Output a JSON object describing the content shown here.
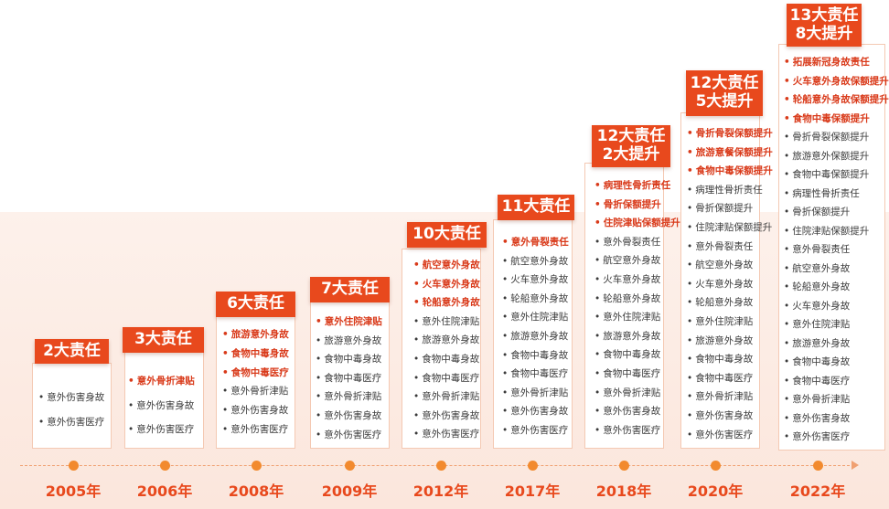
{
  "timeline": [
    {
      "year": "2005年",
      "title_lines": [
        "2大责任"
      ],
      "items": [
        {
          "text": "意外伤害身故",
          "highlight": false
        },
        {
          "text": "意外伤害医疗",
          "highlight": false
        }
      ]
    },
    {
      "year": "2006年",
      "title_lines": [
        "3大责任"
      ],
      "items": [
        {
          "text": "意外骨折津贴",
          "highlight": true
        },
        {
          "text": "意外伤害身故",
          "highlight": false
        },
        {
          "text": "意外伤害医疗",
          "highlight": false
        }
      ]
    },
    {
      "year": "2008年",
      "title_lines": [
        "6大责任"
      ],
      "items": [
        {
          "text": "旅游意外身故",
          "highlight": true
        },
        {
          "text": "食物中毒身故",
          "highlight": true
        },
        {
          "text": "食物中毒医疗",
          "highlight": true
        },
        {
          "text": "意外骨折津贴",
          "highlight": false
        },
        {
          "text": "意外伤害身故",
          "highlight": false
        },
        {
          "text": "意外伤害医疗",
          "highlight": false
        }
      ]
    },
    {
      "year": "2009年",
      "title_lines": [
        "7大责任"
      ],
      "items": [
        {
          "text": "意外住院津贴",
          "highlight": true
        },
        {
          "text": "旅游意外身故",
          "highlight": false
        },
        {
          "text": "食物中毒身故",
          "highlight": false
        },
        {
          "text": "食物中毒医疗",
          "highlight": false
        },
        {
          "text": "意外骨折津贴",
          "highlight": false
        },
        {
          "text": "意外伤害身故",
          "highlight": false
        },
        {
          "text": "意外伤害医疗",
          "highlight": false
        }
      ]
    },
    {
      "year": "2012年",
      "title_lines": [
        "10大责任"
      ],
      "items": [
        {
          "text": "航空意外身故",
          "highlight": true
        },
        {
          "text": "火车意外身故",
          "highlight": true
        },
        {
          "text": "轮船意外身故",
          "highlight": true
        },
        {
          "text": "意外住院津贴",
          "highlight": false
        },
        {
          "text": "旅游意外身故",
          "highlight": false
        },
        {
          "text": "食物中毒身故",
          "highlight": false
        },
        {
          "text": "食物中毒医疗",
          "highlight": false
        },
        {
          "text": "意外骨折津贴",
          "highlight": false
        },
        {
          "text": "意外伤害身故",
          "highlight": false
        },
        {
          "text": "意外伤害医疗",
          "highlight": false
        }
      ]
    },
    {
      "year": "2017年",
      "title_lines": [
        "11大责任"
      ],
      "items": [
        {
          "text": "意外骨裂责任",
          "highlight": true
        },
        {
          "text": "航空意外身故",
          "highlight": false
        },
        {
          "text": "火车意外身故",
          "highlight": false
        },
        {
          "text": "轮船意外身故",
          "highlight": false
        },
        {
          "text": "意外住院津贴",
          "highlight": false
        },
        {
          "text": "旅游意外身故",
          "highlight": false
        },
        {
          "text": "食物中毒身故",
          "highlight": false
        },
        {
          "text": "食物中毒医疗",
          "highlight": false
        },
        {
          "text": "意外骨折津贴",
          "highlight": false
        },
        {
          "text": "意外伤害身故",
          "highlight": false
        },
        {
          "text": "意外伤害医疗",
          "highlight": false
        }
      ]
    },
    {
      "year": "2018年",
      "title_lines": [
        "12大责任",
        "2大提升"
      ],
      "items": [
        {
          "text": "病理性骨折责任",
          "highlight": true
        },
        {
          "text": "骨折保额提升",
          "highlight": true
        },
        {
          "text": "住院津贴保额提升",
          "highlight": true
        },
        {
          "text": "意外骨裂责任",
          "highlight": false
        },
        {
          "text": "航空意外身故",
          "highlight": false
        },
        {
          "text": "火车意外身故",
          "highlight": false
        },
        {
          "text": "轮船意外身故",
          "highlight": false
        },
        {
          "text": "意外住院津贴",
          "highlight": false
        },
        {
          "text": "旅游意外身故",
          "highlight": false
        },
        {
          "text": "食物中毒身故",
          "highlight": false
        },
        {
          "text": "食物中毒医疗",
          "highlight": false
        },
        {
          "text": "意外骨折津贴",
          "highlight": false
        },
        {
          "text": "意外伤害身故",
          "highlight": false
        },
        {
          "text": "意外伤害医疗",
          "highlight": false
        }
      ]
    },
    {
      "year": "2020年",
      "title_lines": [
        "12大责任",
        "5大提升"
      ],
      "items": [
        {
          "text": "骨折骨裂保额提升",
          "highlight": true
        },
        {
          "text": "旅游意餐保额提升",
          "highlight": true
        },
        {
          "text": "食物中毒保额提升",
          "highlight": true
        },
        {
          "text": "病理性骨折责任",
          "highlight": false
        },
        {
          "text": "骨折保额提升",
          "highlight": false
        },
        {
          "text": "住院津贴保额提升",
          "highlight": false
        },
        {
          "text": "意外骨裂责任",
          "highlight": false
        },
        {
          "text": "航空意外身故",
          "highlight": false
        },
        {
          "text": "火车意外身故",
          "highlight": false
        },
        {
          "text": "轮船意外身故",
          "highlight": false
        },
        {
          "text": "意外住院津贴",
          "highlight": false
        },
        {
          "text": "旅游意外身故",
          "highlight": false
        },
        {
          "text": "食物中毒身故",
          "highlight": false
        },
        {
          "text": "食物中毒医疗",
          "highlight": false
        },
        {
          "text": "意外骨折津贴",
          "highlight": false
        },
        {
          "text": "意外伤害身故",
          "highlight": false
        },
        {
          "text": "意外伤害医疗",
          "highlight": false
        }
      ]
    },
    {
      "year": "2022年",
      "title_lines": [
        "13大责任",
        "8大提升"
      ],
      "items": [
        {
          "text": "拓展新冠身故责任",
          "highlight": true
        },
        {
          "text": "火车意外身故保额提升",
          "highlight": true
        },
        {
          "text": "轮船意外身故保额提升",
          "highlight": true
        },
        {
          "text": "食物中毒保额提升",
          "highlight": true
        },
        {
          "text": "骨折骨裂保额提升",
          "highlight": false
        },
        {
          "text": "旅游意外保额提升",
          "highlight": false
        },
        {
          "text": "食物中毒保额提升",
          "highlight": false
        },
        {
          "text": "病理性骨折责任",
          "highlight": false
        },
        {
          "text": "骨折保额提升",
          "highlight": false
        },
        {
          "text": "住院津贴保额提升",
          "highlight": false
        },
        {
          "text": "意外骨裂责任",
          "highlight": false
        },
        {
          "text": "航空意外身故",
          "highlight": false
        },
        {
          "text": "轮船意外身故",
          "highlight": false
        },
        {
          "text": "火车意外身故",
          "highlight": false
        },
        {
          "text": "意外住院津贴",
          "highlight": false
        },
        {
          "text": "旅游意外身故",
          "highlight": false
        },
        {
          "text": "食物中毒身故",
          "highlight": false
        },
        {
          "text": "食物中毒医疗",
          "highlight": false
        },
        {
          "text": "意外骨折津贴",
          "highlight": false
        },
        {
          "text": "意外伤害身故",
          "highlight": false
        },
        {
          "text": "意外伤害医疗",
          "highlight": false
        }
      ]
    }
  ],
  "colors": {
    "accent": "#e8491d",
    "highlight_text": "#d93a1a",
    "marker": "#f28a2e",
    "band": "#fbe9e0"
  }
}
